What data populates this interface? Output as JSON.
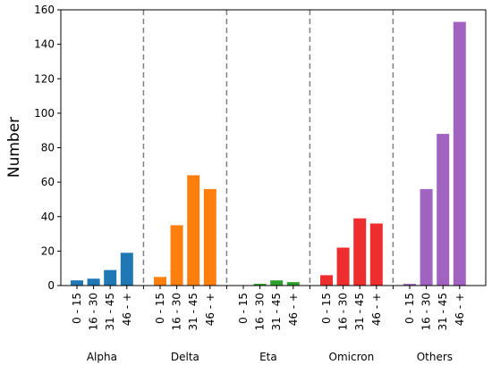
{
  "chart_data": {
    "type": "bar",
    "title": "",
    "xlabel": "",
    "ylabel": "Number",
    "ylim": [
      0,
      160
    ],
    "yticks": [
      0,
      20,
      40,
      60,
      80,
      100,
      120,
      140,
      160
    ],
    "grid": false,
    "legend": "none",
    "group_separator_style": "dashed vertical lines between groups",
    "categories": [
      "0 - 15",
      "16 - 30",
      "31 - 45",
      "46 - +"
    ],
    "series": [
      {
        "name": "Alpha",
        "color": "#1f77b4",
        "values": [
          3,
          4,
          9,
          19
        ]
      },
      {
        "name": "Delta",
        "color": "#ff7f0e",
        "values": [
          5,
          35,
          64,
          56
        ]
      },
      {
        "name": "Eta",
        "color": "#2ca02c",
        "values": [
          0,
          1,
          3,
          2
        ]
      },
      {
        "name": "Omicron",
        "color": "#ee2e2e",
        "values": [
          6,
          22,
          39,
          36
        ]
      },
      {
        "name": "Others",
        "color": "#a064c0",
        "values": [
          1,
          56,
          88,
          153
        ]
      }
    ]
  }
}
